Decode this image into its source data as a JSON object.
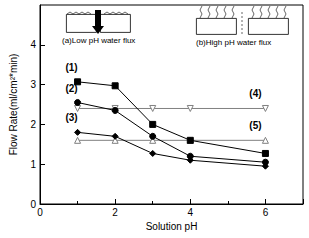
{
  "chart_data": {
    "type": "line",
    "x_label": "Solution pH",
    "y_label": "Flow Rate(ml/cm²*min)",
    "x": [
      1,
      2,
      3,
      4,
      6
    ],
    "xlim": [
      0,
      7
    ],
    "xticks": [
      0,
      2,
      4,
      6
    ],
    "ylim": [
      0,
      5
    ],
    "yticks": [
      0,
      1,
      2,
      3,
      4
    ],
    "grid": false,
    "series": [
      {
        "name": "(1)",
        "color": "#000000",
        "marker": "square",
        "values": [
          3.07,
          2.97,
          2.0,
          1.6,
          1.27
        ]
      },
      {
        "name": "(2)",
        "color": "#000000",
        "marker": "circle",
        "values": [
          2.55,
          2.35,
          1.7,
          1.2,
          1.05
        ]
      },
      {
        "name": "(3)",
        "color": "#000000",
        "marker": "diamond",
        "values": [
          1.8,
          1.7,
          1.27,
          1.1,
          0.95
        ]
      },
      {
        "name": "(4)",
        "color": "#808080",
        "marker": "triangle_down_open",
        "values": [
          2.4,
          2.4,
          2.4,
          2.4,
          2.4
        ]
      },
      {
        "name": "(5)",
        "color": "#808080",
        "marker": "triangle_open",
        "values": [
          1.6,
          1.6,
          1.6,
          1.6,
          1.6
        ]
      }
    ],
    "annotations": [
      "(a)Low pH water flux",
      "(b)High pH water flux"
    ]
  }
}
